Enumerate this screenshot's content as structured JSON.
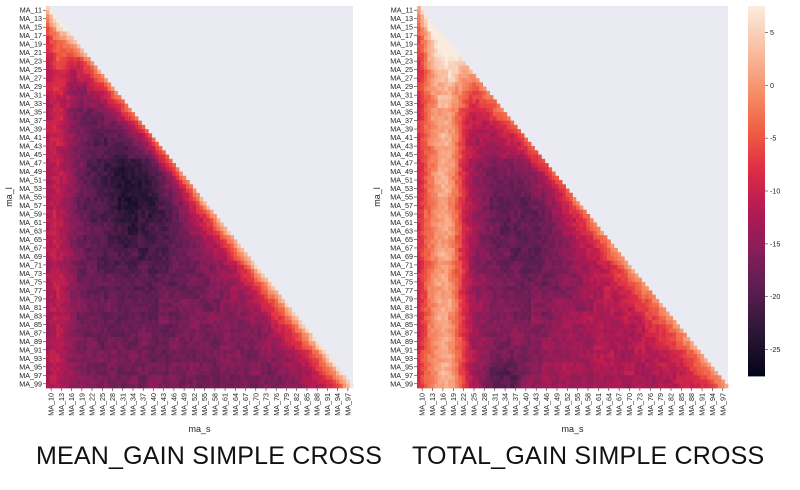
{
  "captions": {
    "left": "MEAN_GAIN SIMPLE CROSS",
    "right": "TOTAL_GAIN SIMPLE CROSS"
  },
  "colorbar": {
    "ticks": [
      5,
      0,
      -5,
      -10,
      -15,
      -20,
      -25
    ],
    "tick_labels": [
      "5",
      "0",
      "-5",
      "-10",
      "-15",
      "-20",
      "-25"
    ],
    "min": -27.5,
    "max": 7.5,
    "colormap": "rocket",
    "colors": [
      "#03051a",
      "#2a1636",
      "#571e4f",
      "#841e5a",
      "#b21a53",
      "#dd2c45",
      "#f06043",
      "#f6926d",
      "#f9c0a4",
      "#faebdd"
    ]
  },
  "background_color": "#eaeaf2",
  "chart_data": [
    {
      "type": "heatmap",
      "title": "MEAN_GAIN SIMPLE CROSS",
      "xlabel": "ma_s",
      "ylabel": "ma_l",
      "x_categories": [
        "MA_10",
        "MA_13",
        "MA_16",
        "MA_19",
        "MA_22",
        "MA_25",
        "MA_28",
        "MA_31",
        "MA_34",
        "MA_37",
        "MA_40",
        "MA_43",
        "MA_46",
        "MA_49",
        "MA_52",
        "MA_55",
        "MA_58",
        "MA_61",
        "MA_64",
        "MA_67",
        "MA_70",
        "MA_73",
        "MA_76",
        "MA_79",
        "MA_82",
        "MA_85",
        "MA_88",
        "MA_91",
        "MA_94",
        "MA_97"
      ],
      "y_categories": [
        "MA_11",
        "MA_13",
        "MA_15",
        "MA_17",
        "MA_19",
        "MA_21",
        "MA_23",
        "MA_25",
        "MA_27",
        "MA_29",
        "MA_31",
        "MA_33",
        "MA_35",
        "MA_37",
        "MA_39",
        "MA_41",
        "MA_43",
        "MA_45",
        "MA_47",
        "MA_49",
        "MA_51",
        "MA_53",
        "MA_55",
        "MA_57",
        "MA_59",
        "MA_61",
        "MA_63",
        "MA_65",
        "MA_67",
        "MA_69",
        "MA_71",
        "MA_73",
        "MA_75",
        "MA_77",
        "MA_79",
        "MA_81",
        "MA_83",
        "MA_85",
        "MA_87",
        "MA_89",
        "MA_91",
        "MA_93",
        "MA_95",
        "MA_97",
        "MA_99"
      ],
      "shape": "lower-triangle (valid where ma_s < ma_l), upper triangle empty",
      "color_scale": "independent, no colorbar shown",
      "pattern": "lightest (orange-red) along the diagonal at small ma_l, a bright column at ma_s near MA_13, darkest region around ma_s MA_31-MA_52 and ma_l MA_35-MA_75, lighter toward the lower-right edge"
    },
    {
      "type": "heatmap",
      "title": "TOTAL_GAIN SIMPLE CROSS",
      "xlabel": "ma_s",
      "ylabel": "ma_l",
      "x_categories": [
        "MA_10",
        "MA_13",
        "MA_16",
        "MA_19",
        "MA_22",
        "MA_25",
        "MA_28",
        "MA_31",
        "MA_34",
        "MA_37",
        "MA_40",
        "MA_43",
        "MA_46",
        "MA_49",
        "MA_52",
        "MA_55",
        "MA_58",
        "MA_61",
        "MA_64",
        "MA_67",
        "MA_70",
        "MA_73",
        "MA_76",
        "MA_79",
        "MA_82",
        "MA_85",
        "MA_88",
        "MA_91",
        "MA_94",
        "MA_97"
      ],
      "y_categories": [
        "MA_11",
        "MA_13",
        "MA_15",
        "MA_17",
        "MA_19",
        "MA_21",
        "MA_23",
        "MA_25",
        "MA_27",
        "MA_29",
        "MA_31",
        "MA_33",
        "MA_35",
        "MA_37",
        "MA_39",
        "MA_41",
        "MA_43",
        "MA_45",
        "MA_47",
        "MA_49",
        "MA_51",
        "MA_53",
        "MA_55",
        "MA_57",
        "MA_59",
        "MA_61",
        "MA_63",
        "MA_65",
        "MA_67",
        "MA_69",
        "MA_71",
        "MA_73",
        "MA_75",
        "MA_77",
        "MA_79",
        "MA_81",
        "MA_83",
        "MA_85",
        "MA_87",
        "MA_89",
        "MA_91",
        "MA_93",
        "MA_95",
        "MA_97",
        "MA_99"
      ],
      "shape": "lower-triangle (valid where ma_s < ma_l), upper triangle empty",
      "value_range": [
        -27,
        7
      ],
      "pattern": "near +5 (cream) in a vertical band at ma_s MA_13-MA_22, around -15 to -22 in the interior, minimum near -27 at ma_s MA_31-MA_37 for ma_l MA_93-MA_99, about -5 along the diagonal edge"
    }
  ]
}
